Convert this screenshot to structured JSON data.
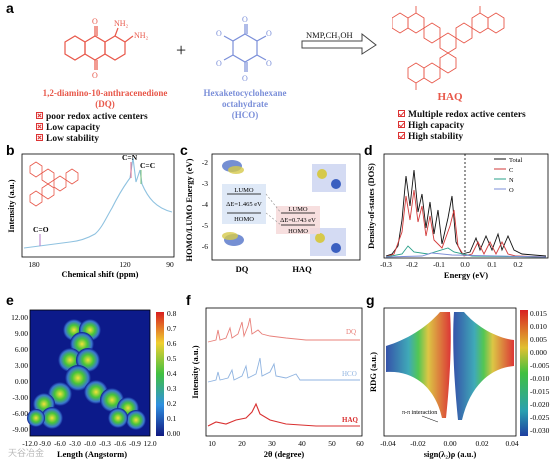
{
  "panel_a": {
    "label": "a",
    "reactant1": {
      "name": "1,2-diamino-10-anthracenedione",
      "abbr": "(DQ)",
      "color": "#e8584a",
      "bullets": [
        "poor redox active centers",
        "Low capacity",
        "Low stability"
      ],
      "atom_nh2_1": "NH₂",
      "atom_nh2_2": "NH₂",
      "atom_o1": "O",
      "atom_o2": "O"
    },
    "plus": "+",
    "reactant2": {
      "name": "Hexaketocyclohexane octahydrate",
      "abbr": "(HCO)",
      "color": "#7b8fd9",
      "atom_o": "O"
    },
    "conditions": "NMP,CH₃OH",
    "product": {
      "name": "HAQ",
      "color": "#e8584a",
      "bullets": [
        "Multiple redox active centers",
        "High capacity",
        "High stability"
      ]
    }
  },
  "panel_b": {
    "label": "b",
    "ylabel": "Intensity (a.u.)",
    "xlabel": "Chemical shift (ppm)",
    "xticks": [
      "180",
      "120",
      "90"
    ],
    "annotations": [
      "C=N",
      "C=C",
      "C=O"
    ]
  },
  "panel_c": {
    "label": "c",
    "ylabel": "HOMO/LUMO Energy (eV)",
    "yticks": [
      "-2",
      "-3",
      "-4",
      "-5",
      "-6"
    ],
    "categories": [
      "DQ",
      "HAQ"
    ],
    "dq": {
      "lumo": "LUMO",
      "gap": "ΔE=1.465 eV",
      "homo": "HOMO"
    },
    "haq": {
      "lumo": "LUMO",
      "gap": "ΔE=0.743 eV",
      "homo": "HOMO"
    }
  },
  "panel_d": {
    "label": "d",
    "ylabel": "Density-of-states (DOS)",
    "xlabel": "Energy (eV)",
    "xticks": [
      "-0.3",
      "-0.2",
      "-0.1",
      "0.0",
      "0.1",
      "0.2"
    ],
    "legend": [
      {
        "name": "Total",
        "color": "#111111"
      },
      {
        "name": "C",
        "color": "#d23a3a"
      },
      {
        "name": "N",
        "color": "#2aa08a"
      },
      {
        "name": "O",
        "color": "#7d8fd8"
      }
    ]
  },
  "panel_e": {
    "label": "e",
    "xlabel": "Length (Angstorm)",
    "yticks": [
      "12.00",
      "9.00",
      "6.00",
      "3.00",
      "0.00",
      "-3.00",
      "-6.00",
      "-9.00"
    ],
    "xticks": [
      "-12.0",
      "-9.0",
      "-6.0",
      "-3.0",
      "-0.0",
      "-0.3",
      "-0.6",
      "-0.9",
      "12.0"
    ],
    "colorbar": [
      "0.8",
      "0.7",
      "0.6",
      "0.5",
      "0.4",
      "0.3",
      "0.2",
      "0.1",
      "0.00"
    ]
  },
  "panel_f": {
    "label": "f",
    "ylabel": "Intensity (a.u.)",
    "xlabel": "2θ (degree)",
    "xticks": [
      "10",
      "20",
      "30",
      "40",
      "50",
      "60"
    ],
    "series": [
      {
        "name": "DQ",
        "color": "#e8807a"
      },
      {
        "name": "HCO",
        "color": "#8fb3e0"
      },
      {
        "name": "HAQ",
        "color": "#d93030"
      }
    ]
  },
  "panel_g": {
    "label": "g",
    "ylabel": "RDG (a.u.)",
    "xlabel": "sign(λ₂)ρ (a.u.)",
    "xticks": [
      "-0.04",
      "-0.02",
      "0.00",
      "0.02",
      "0.04"
    ],
    "annotation": "π-π interaction",
    "colorbar": [
      "0.015",
      "0.010",
      "0.005",
      "0.000",
      "-0.005",
      "-0.010",
      "-0.015",
      "-0.020",
      "-0.025",
      "-0.030"
    ]
  },
  "watermark": "天谷冶金"
}
